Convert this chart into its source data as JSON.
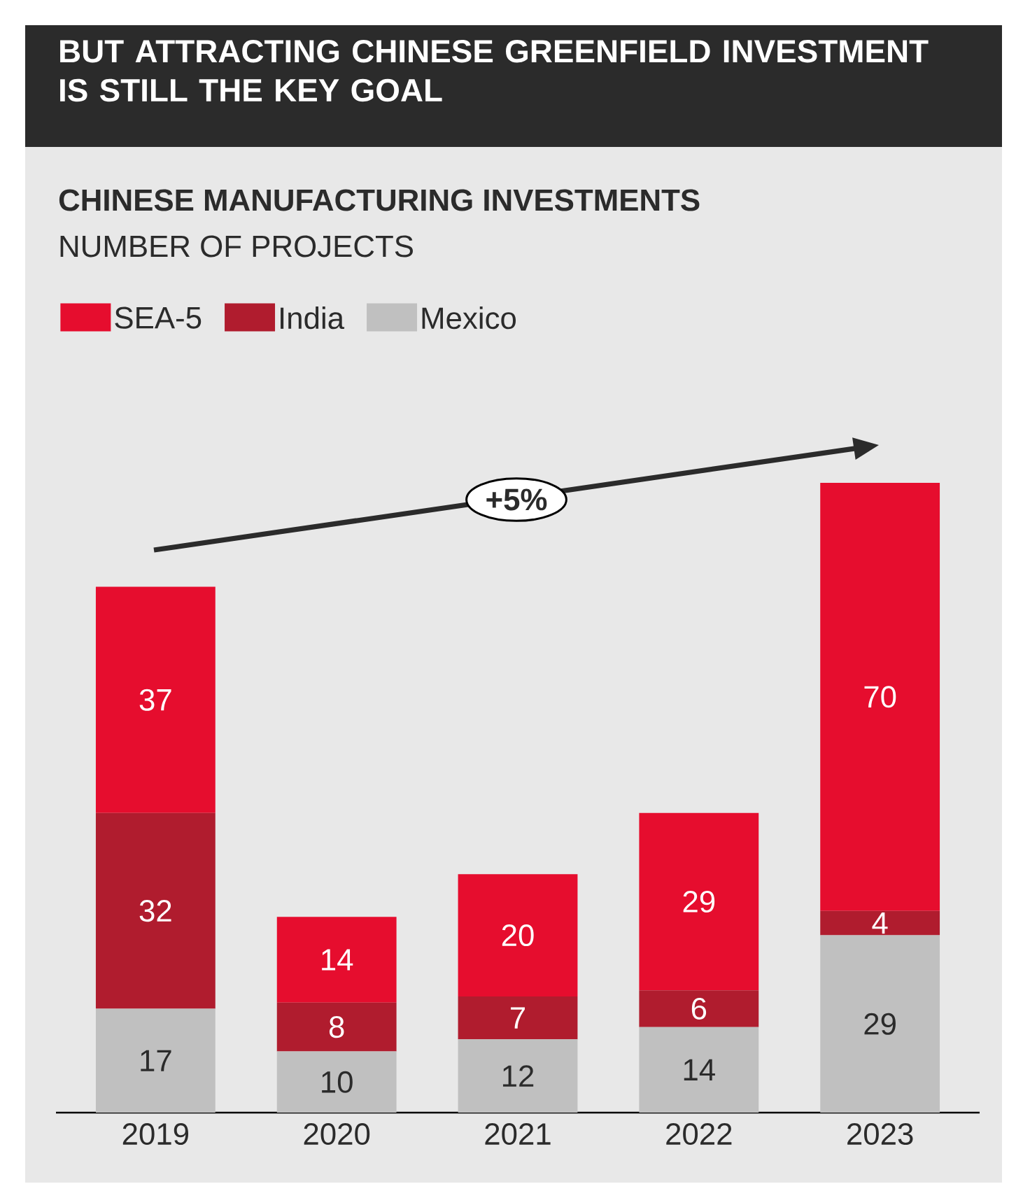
{
  "chart_data": {
    "type": "bar",
    "title": "BUT ATTRACTING CHINESE GREENFIELD INVESTMENT IS STILL THE KEY GOAL",
    "subtitle": "CHINESE MANUFACTURING INVESTMENTS",
    "categories": [
      "2019",
      "2020",
      "2021",
      "2022",
      "2023"
    ],
    "stacked": true,
    "data_labels": true,
    "legend": "top left",
    "series": [
      {
        "name": "Mexico",
        "color": "#c0c0c0",
        "values": [
          17,
          10,
          12,
          14,
          29
        ]
      },
      {
        "name": "India",
        "color": "#b01c2e",
        "values": [
          32,
          8,
          7,
          6,
          4
        ]
      },
      {
        "name": "SEA-5",
        "color": "#e60d2e",
        "values": [
          37,
          14,
          20,
          29,
          70
        ]
      }
    ],
    "annotations": [
      "NUMBER OF PROJECTS",
      "+5%"
    ]
  }
}
